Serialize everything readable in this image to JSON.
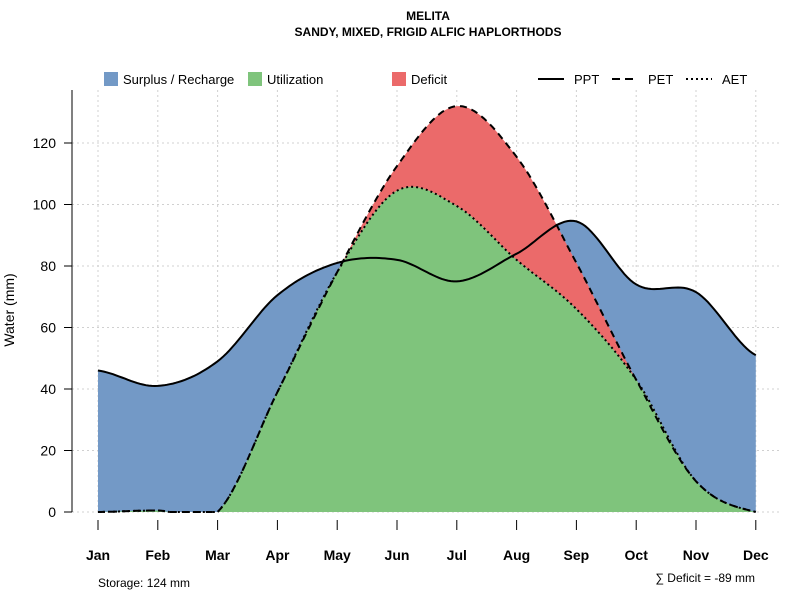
{
  "chart_data": {
    "type": "area",
    "title": "MELITA",
    "subtitle": "SANDY, MIXED, FRIGID ALFIC HAPLORTHODS",
    "xlabel": "",
    "ylabel": "Water (mm)",
    "ylim": [
      0,
      135
    ],
    "yticks": [
      "0",
      "20",
      "40",
      "60",
      "80",
      "100",
      "120"
    ],
    "ytick_values": [
      0,
      20,
      40,
      60,
      80,
      100,
      120
    ],
    "categories": [
      "Jan",
      "Feb",
      "Mar",
      "Apr",
      "May",
      "Jun",
      "Jul",
      "Aug",
      "Sep",
      "Oct",
      "Nov",
      "Dec"
    ],
    "grid": true,
    "legend_position": "top",
    "series": [
      {
        "name": "PPT",
        "style": "solid",
        "values": [
          46,
          41,
          49,
          70.5,
          81,
          82,
          75,
          84,
          94.5,
          74,
          71.5,
          51
        ]
      },
      {
        "name": "PET",
        "style": "dashed",
        "values": [
          0,
          0.5,
          0,
          39,
          78,
          112.5,
          132,
          115.5,
          81,
          43,
          10,
          0
        ]
      },
      {
        "name": "AET",
        "style": "dotted",
        "values": [
          0,
          0.5,
          0,
          39,
          78,
          104.5,
          99.5,
          82,
          66,
          43,
          10,
          0
        ]
      }
    ],
    "fills": [
      {
        "name": "Surplus / Recharge",
        "color": "#7399C6"
      },
      {
        "name": "Utilization",
        "color": "#7FC47C"
      },
      {
        "name": "Deficit",
        "color": "#EB6A6A"
      }
    ],
    "annotations": {
      "storage": "Storage: 124 mm",
      "deficit": "∑ Deficit = -89 mm"
    }
  }
}
